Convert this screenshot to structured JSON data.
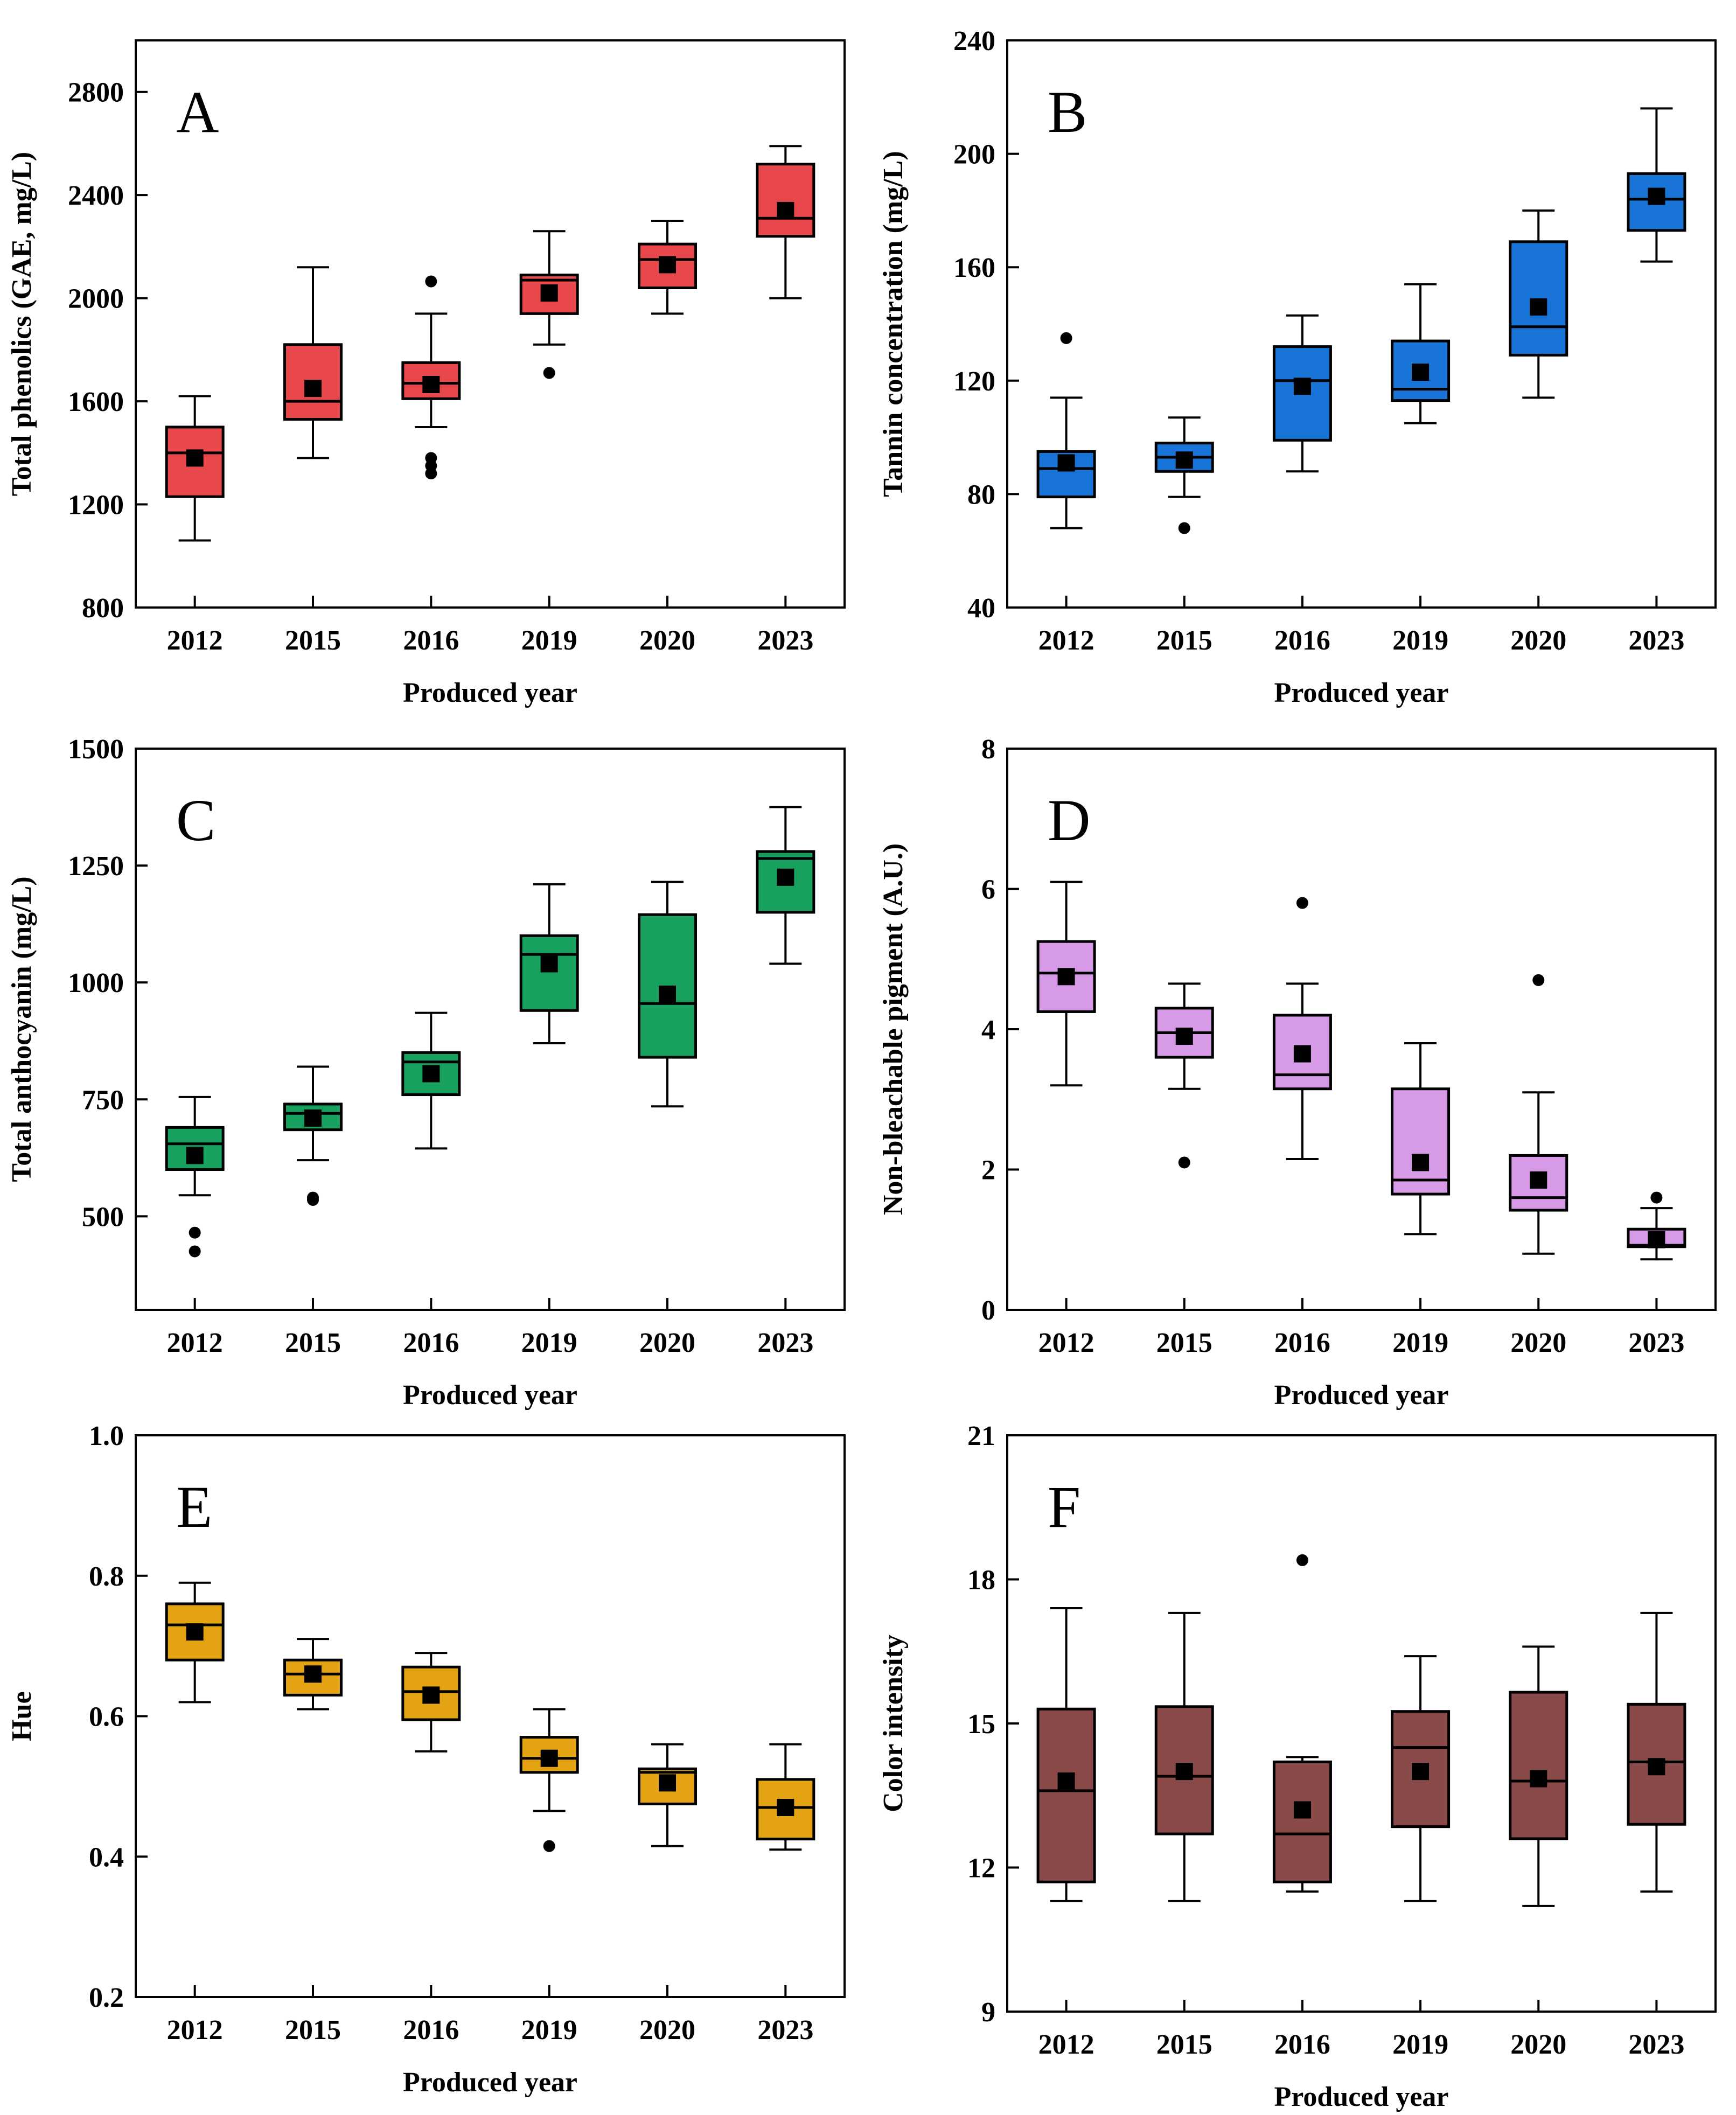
{
  "figure": {
    "panels_layout": "3 rows x 2 columns"
  },
  "chart_data": [
    {
      "panel": "A",
      "type": "boxplot",
      "color": "#e8474b",
      "xlabel": "Produced year",
      "ylabel": "Total phenolics (GAE, mg/L)",
      "ylim": [
        800,
        3000
      ],
      "yticks": [
        800,
        1200,
        1600,
        2000,
        2400,
        2800
      ],
      "ytick_labels": [
        "800",
        "1200",
        "1600",
        "2000",
        "2400",
        "2800"
      ],
      "categories": [
        "2012",
        "2015",
        "2016",
        "2019",
        "2020",
        "2023"
      ],
      "boxes": [
        {
          "min": 1060,
          "q1": 1230,
          "median": 1400,
          "q3": 1500,
          "max": 1620,
          "mean": 1380,
          "outliers": []
        },
        {
          "min": 1380,
          "q1": 1530,
          "median": 1600,
          "q3": 1820,
          "max": 2120,
          "mean": 1650,
          "outliers": []
        },
        {
          "min": 1500,
          "q1": 1610,
          "median": 1670,
          "q3": 1750,
          "max": 1940,
          "mean": 1665,
          "outliers": [
            2065,
            1380,
            1350,
            1320
          ]
        },
        {
          "min": 1820,
          "q1": 1940,
          "median": 2070,
          "q3": 2090,
          "max": 2260,
          "mean": 2020,
          "outliers": [
            1710
          ]
        },
        {
          "min": 1940,
          "q1": 2040,
          "median": 2150,
          "q3": 2210,
          "max": 2300,
          "mean": 2130,
          "outliers": []
        },
        {
          "min": 2000,
          "q1": 2240,
          "median": 2310,
          "q3": 2520,
          "max": 2590,
          "mean": 2340,
          "outliers": []
        }
      ]
    },
    {
      "panel": "B",
      "type": "boxplot",
      "color": "#1874d6",
      "xlabel": "Produced year",
      "ylabel": "Tannin concentration (mg/L)",
      "ylim": [
        40,
        240
      ],
      "yticks": [
        40,
        80,
        120,
        160,
        200,
        240
      ],
      "ytick_labels": [
        "40",
        "80",
        "120",
        "160",
        "200",
        "240"
      ],
      "categories": [
        "2012",
        "2015",
        "2016",
        "2019",
        "2020",
        "2023"
      ],
      "boxes": [
        {
          "min": 68,
          "q1": 79,
          "median": 89,
          "q3": 95,
          "max": 114,
          "mean": 91,
          "outliers": [
            135
          ]
        },
        {
          "min": 79,
          "q1": 88,
          "median": 93,
          "q3": 98,
          "max": 107,
          "mean": 92,
          "outliers": [
            68
          ]
        },
        {
          "min": 88,
          "q1": 99,
          "median": 120,
          "q3": 132,
          "max": 143,
          "mean": 118,
          "outliers": []
        },
        {
          "min": 105,
          "q1": 113,
          "median": 117,
          "q3": 134,
          "max": 154,
          "mean": 123,
          "outliers": []
        },
        {
          "min": 114,
          "q1": 129,
          "median": 139,
          "q3": 169,
          "max": 180,
          "mean": 146,
          "outliers": []
        },
        {
          "min": 162,
          "q1": 173,
          "median": 184,
          "q3": 193,
          "max": 216,
          "mean": 185,
          "outliers": []
        }
      ]
    },
    {
      "panel": "C",
      "type": "boxplot",
      "color": "#18a05e",
      "xlabel": "Produced year",
      "ylabel": "Total anthocyanin (mg/L)",
      "ylim": [
        300,
        1500
      ],
      "yticks": [
        500,
        750,
        1000,
        1250,
        1500
      ],
      "ytick_labels": [
        "500",
        "750",
        "1000",
        "1250",
        "1500"
      ],
      "categories": [
        "2012",
        "2015",
        "2016",
        "2019",
        "2020",
        "2023"
      ],
      "boxes": [
        {
          "min": 545,
          "q1": 600,
          "median": 655,
          "q3": 690,
          "max": 755,
          "mean": 630,
          "outliers": [
            465,
            425
          ]
        },
        {
          "min": 620,
          "q1": 685,
          "median": 720,
          "q3": 740,
          "max": 820,
          "mean": 710,
          "outliers": [
            540,
            535
          ]
        },
        {
          "min": 645,
          "q1": 760,
          "median": 830,
          "q3": 850,
          "max": 935,
          "mean": 805,
          "outliers": []
        },
        {
          "min": 870,
          "q1": 940,
          "median": 1060,
          "q3": 1100,
          "max": 1210,
          "mean": 1040,
          "outliers": []
        },
        {
          "min": 735,
          "q1": 840,
          "median": 955,
          "q3": 1145,
          "max": 1215,
          "mean": 975,
          "outliers": []
        },
        {
          "min": 1040,
          "q1": 1150,
          "median": 1265,
          "q3": 1280,
          "max": 1375,
          "mean": 1225,
          "outliers": []
        }
      ]
    },
    {
      "panel": "D",
      "type": "boxplot",
      "color": "#d69ae6",
      "xlabel": "Produced year",
      "ylabel": "Non-bleachable pigment (A.U.)",
      "ylim": [
        0,
        8
      ],
      "yticks": [
        0,
        2,
        4,
        6,
        8
      ],
      "ytick_labels": [
        "0",
        "2",
        "4",
        "6",
        "8"
      ],
      "categories": [
        "2012",
        "2015",
        "2016",
        "2019",
        "2020",
        "2023"
      ],
      "boxes": [
        {
          "min": 3.2,
          "q1": 4.25,
          "median": 4.8,
          "q3": 5.25,
          "max": 6.1,
          "mean": 4.75,
          "outliers": []
        },
        {
          "min": 3.15,
          "q1": 3.6,
          "median": 3.95,
          "q3": 4.3,
          "max": 4.65,
          "mean": 3.9,
          "outliers": [
            2.1
          ]
        },
        {
          "min": 2.15,
          "q1": 3.15,
          "median": 3.35,
          "q3": 4.2,
          "max": 4.65,
          "mean": 3.65,
          "outliers": [
            5.8
          ]
        },
        {
          "min": 1.08,
          "q1": 1.65,
          "median": 1.85,
          "q3": 3.15,
          "max": 3.8,
          "mean": 2.1,
          "outliers": []
        },
        {
          "min": 0.8,
          "q1": 1.42,
          "median": 1.6,
          "q3": 2.2,
          "max": 3.1,
          "mean": 1.85,
          "outliers": [
            4.7
          ]
        },
        {
          "min": 0.72,
          "q1": 0.9,
          "median": 0.92,
          "q3": 1.15,
          "max": 1.45,
          "mean": 1.0,
          "outliers": [
            1.6
          ]
        }
      ]
    },
    {
      "panel": "E",
      "type": "boxplot",
      "color": "#e3a312",
      "xlabel": "Produced year",
      "ylabel": "Hue",
      "ylim": [
        0.2,
        1.0
      ],
      "yticks": [
        0.2,
        0.4,
        0.6,
        0.8,
        1.0
      ],
      "ytick_labels": [
        "0.2",
        "0.4",
        "0.6",
        "0.8",
        "1.0"
      ],
      "categories": [
        "2012",
        "2015",
        "2016",
        "2019",
        "2020",
        "2023"
      ],
      "boxes": [
        {
          "min": 0.62,
          "q1": 0.68,
          "median": 0.73,
          "q3": 0.76,
          "max": 0.79,
          "mean": 0.72,
          "outliers": []
        },
        {
          "min": 0.61,
          "q1": 0.63,
          "median": 0.66,
          "q3": 0.68,
          "max": 0.71,
          "mean": 0.66,
          "outliers": []
        },
        {
          "min": 0.55,
          "q1": 0.595,
          "median": 0.635,
          "q3": 0.67,
          "max": 0.69,
          "mean": 0.63,
          "outliers": []
        },
        {
          "min": 0.465,
          "q1": 0.52,
          "median": 0.54,
          "q3": 0.57,
          "max": 0.61,
          "mean": 0.54,
          "outliers": [
            0.415
          ]
        },
        {
          "min": 0.415,
          "q1": 0.475,
          "median": 0.52,
          "q3": 0.525,
          "max": 0.56,
          "mean": 0.505,
          "outliers": []
        },
        {
          "min": 0.41,
          "q1": 0.425,
          "median": 0.47,
          "q3": 0.51,
          "max": 0.56,
          "mean": 0.47,
          "outliers": []
        }
      ]
    },
    {
      "panel": "F",
      "type": "boxplot",
      "color": "#8b4a4a",
      "xlabel": "Produced year",
      "ylabel": "Color intensity",
      "ylim": [
        9,
        21
      ],
      "yticks": [
        9,
        12,
        15,
        18,
        21
      ],
      "ytick_labels": [
        "9",
        "12",
        "15",
        "18",
        "21"
      ],
      "categories": [
        "2012",
        "2015",
        "2016",
        "2019",
        "2020",
        "2023"
      ],
      "boxes": [
        {
          "min": 11.3,
          "q1": 11.7,
          "median": 13.6,
          "q3": 15.3,
          "max": 17.4,
          "mean": 13.8,
          "outliers": []
        },
        {
          "min": 11.3,
          "q1": 12.7,
          "median": 13.9,
          "q3": 15.35,
          "max": 17.3,
          "mean": 14.0,
          "outliers": []
        },
        {
          "min": 11.5,
          "q1": 11.7,
          "median": 12.7,
          "q3": 14.2,
          "max": 14.3,
          "mean": 13.2,
          "outliers": [
            18.4
          ]
        },
        {
          "min": 11.3,
          "q1": 12.85,
          "median": 14.5,
          "q3": 15.25,
          "max": 16.4,
          "mean": 14.0,
          "outliers": []
        },
        {
          "min": 11.2,
          "q1": 12.6,
          "median": 13.8,
          "q3": 15.65,
          "max": 16.6,
          "mean": 13.85,
          "outliers": []
        },
        {
          "min": 11.5,
          "q1": 12.9,
          "median": 14.2,
          "q3": 15.4,
          "max": 17.3,
          "mean": 14.1,
          "outliers": []
        }
      ]
    }
  ]
}
